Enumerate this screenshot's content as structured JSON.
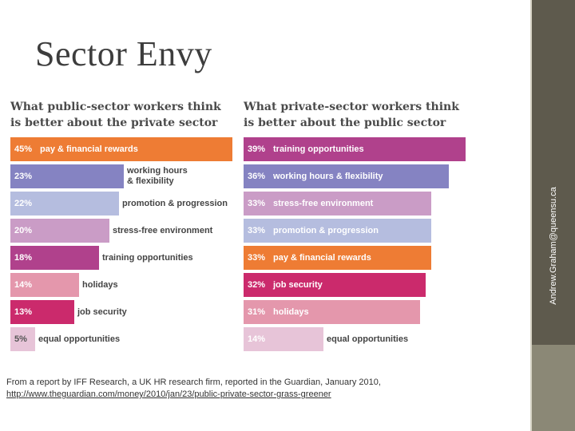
{
  "slide": {
    "title": "Sector Envy",
    "vertical_email": "Andrew.Graham@queensu.ca"
  },
  "source": {
    "text": "From a report by IFF Research, a UK HR research firm, reported in the Guardian, January 2010,",
    "link": "http://www.theguardian.com/money/2010/jan/23/public-private-sector-grass-greener"
  },
  "colors": {
    "pay": "#ee7c34",
    "hours": "#8583c2",
    "promotion": "#b5bddf",
    "stress": "#ca9cc6",
    "training": "#b0418c",
    "holidays": "#e497ac",
    "job_security": "#cb2a6c",
    "equal": "#e7c4d8"
  },
  "chart_data": [
    {
      "type": "bar",
      "orientation": "horizontal",
      "title": "What public-sector workers think is better about the private sector",
      "unit": "%",
      "xlim": [
        0,
        45
      ],
      "bars": [
        {
          "value": 45,
          "display": "45%",
          "label": "pay & financial rewards",
          "color": "#ee7c34"
        },
        {
          "value": 23,
          "display": "23%",
          "label": "working hours\n& flexibility",
          "color": "#8583c2"
        },
        {
          "value": 22,
          "display": "22%",
          "label": "promotion & progression",
          "color": "#b5bddf"
        },
        {
          "value": 20,
          "display": "20%",
          "label": "stress-free environment",
          "color": "#ca9cc6"
        },
        {
          "value": 18,
          "display": "18%",
          "label": "training opportunities",
          "color": "#b0418c"
        },
        {
          "value": 14,
          "display": "14%",
          "label": "holidays",
          "color": "#e497ac"
        },
        {
          "value": 13,
          "display": "13%",
          "label": "job security",
          "color": "#cb2a6c"
        },
        {
          "value": 5,
          "display": "5%",
          "label": "equal opportunities",
          "color": "#e7c4d8"
        }
      ]
    },
    {
      "type": "bar",
      "orientation": "horizontal",
      "title": "What private-sector workers think is better about the public sector",
      "unit": "%",
      "xlim": [
        0,
        39
      ],
      "bars": [
        {
          "value": 39,
          "display": "39%",
          "label": "training opportunities",
          "color": "#b0418c"
        },
        {
          "value": 36,
          "display": "36%",
          "label": "working hours & flexibility",
          "color": "#8583c2"
        },
        {
          "value": 33,
          "display": "33%",
          "label": "stress-free environment",
          "color": "#ca9cc6"
        },
        {
          "value": 33,
          "display": "33%",
          "label": "promotion & progression",
          "color": "#b5bddf"
        },
        {
          "value": 33,
          "display": "33%",
          "label": "pay & financial rewards",
          "color": "#ee7c34"
        },
        {
          "value": 32,
          "display": "32%",
          "label": "job security",
          "color": "#cb2a6c"
        },
        {
          "value": 31,
          "display": "31%",
          "label": "holidays",
          "color": "#e497ac"
        },
        {
          "value": 14,
          "display": "14%",
          "label": "equal opportunities",
          "color": "#e7c4d8"
        }
      ]
    }
  ]
}
